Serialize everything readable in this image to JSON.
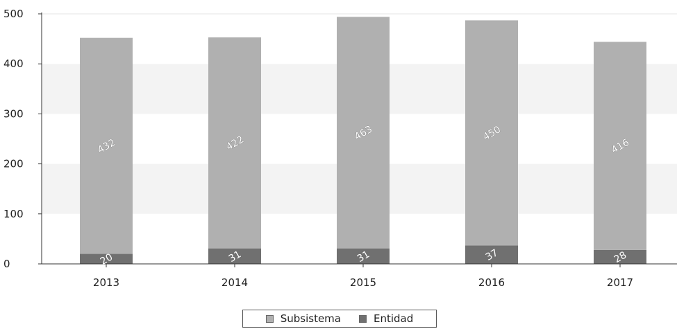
{
  "chart_data": {
    "type": "bar",
    "stacked": true,
    "categories": [
      "2013",
      "2014",
      "2015",
      "2016",
      "2017"
    ],
    "series": [
      {
        "name": "Entidad",
        "values": [
          20,
          31,
          31,
          37,
          28
        ],
        "color": "#707070"
      },
      {
        "name": "Subsistema",
        "values": [
          432,
          422,
          463,
          450,
          416
        ],
        "color": "#b0b0b0"
      }
    ],
    "ylim": [
      0,
      500
    ],
    "yticks": [
      "0",
      "100",
      "200",
      "300",
      "400",
      "500"
    ],
    "xlabel": "",
    "ylabel": "",
    "grid": "alternating horizontal bands",
    "legend_position": "bottom-center",
    "legend": [
      {
        "label": "Subsistema",
        "color": "#b0b0b0"
      },
      {
        "label": "Entidad",
        "color": "#707070"
      }
    ]
  }
}
